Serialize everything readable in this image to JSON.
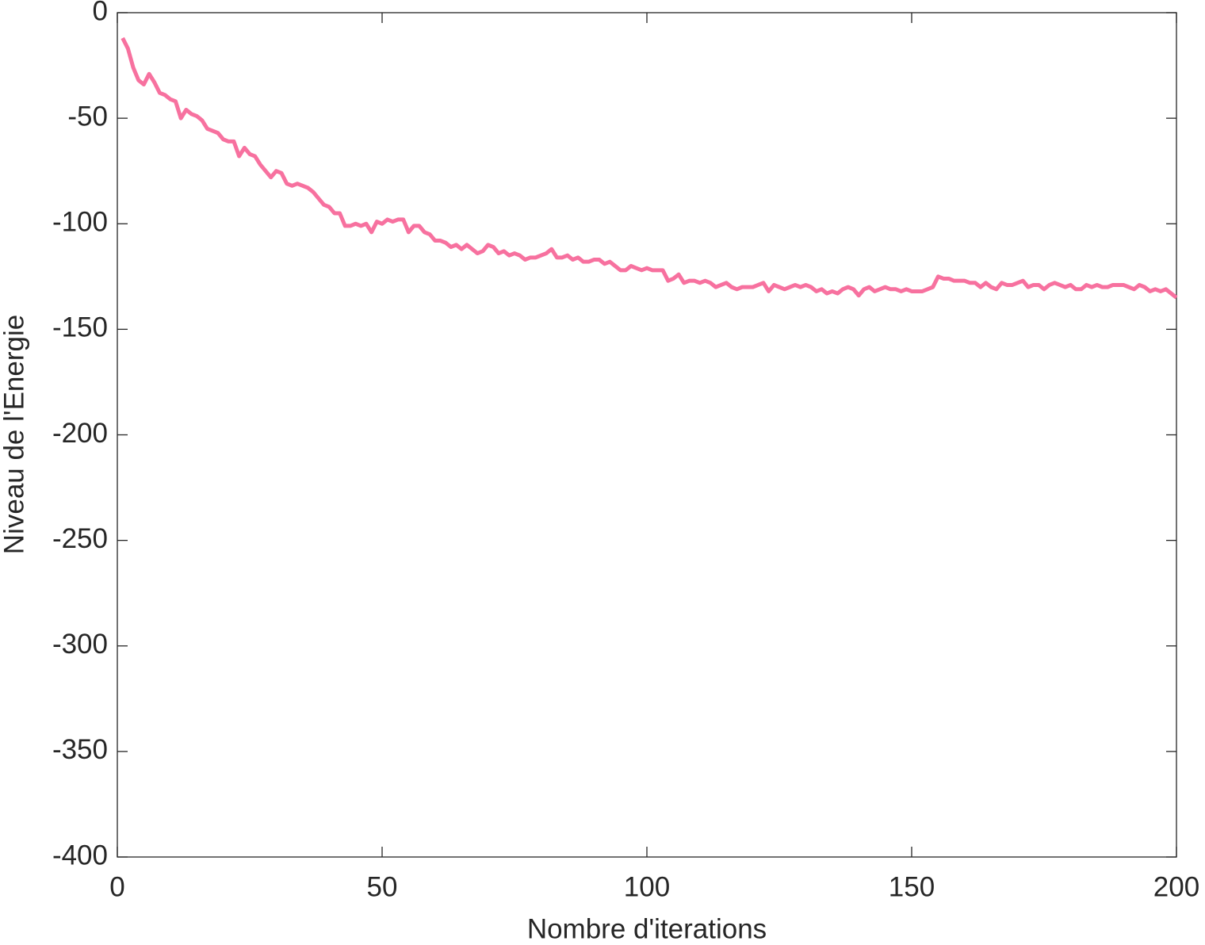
{
  "chart_data": {
    "type": "line",
    "x_label": "Nombre d'iterations",
    "y_label": "Niveau de l'Energie",
    "x": [
      1,
      2,
      3,
      4,
      5,
      6,
      7,
      8,
      9,
      10,
      11,
      12,
      13,
      14,
      15,
      16,
      17,
      18,
      19,
      20,
      21,
      22,
      23,
      24,
      25,
      26,
      27,
      28,
      29,
      30,
      31,
      32,
      33,
      34,
      35,
      36,
      37,
      38,
      39,
      40,
      41,
      42,
      43,
      44,
      45,
      46,
      47,
      48,
      49,
      50,
      51,
      52,
      53,
      54,
      55,
      56,
      57,
      58,
      59,
      60,
      61,
      62,
      63,
      64,
      65,
      66,
      67,
      68,
      69,
      70,
      71,
      72,
      73,
      74,
      75,
      76,
      77,
      78,
      79,
      80,
      81,
      82,
      83,
      84,
      85,
      86,
      87,
      88,
      89,
      90,
      91,
      92,
      93,
      94,
      95,
      96,
      97,
      98,
      99,
      100,
      101,
      102,
      103,
      104,
      105,
      106,
      107,
      108,
      109,
      110,
      111,
      112,
      113,
      114,
      115,
      116,
      117,
      118,
      119,
      120,
      121,
      122,
      123,
      124,
      125,
      126,
      127,
      128,
      129,
      130,
      131,
      132,
      133,
      134,
      135,
      136,
      137,
      138,
      139,
      140,
      141,
      142,
      143,
      144,
      145,
      146,
      147,
      148,
      149,
      150,
      151,
      152,
      153,
      154,
      155,
      156,
      157,
      158,
      159,
      160,
      161,
      162,
      163,
      164,
      165,
      166,
      167,
      168,
      169,
      170,
      171,
      172,
      173,
      174,
      175,
      176,
      177,
      178,
      179,
      180,
      181,
      182,
      183,
      184,
      185,
      186,
      187,
      188,
      189,
      190,
      191,
      192,
      193,
      194,
      195,
      196,
      197,
      198,
      199,
      200
    ],
    "series": [
      {
        "color": "#f7719f",
        "values": [
          -12,
          -17,
          -26,
          -32,
          -34,
          -29,
          -33,
          -38,
          -39,
          -41,
          -42,
          -50,
          -46,
          -48,
          -49,
          -51,
          -55,
          -56,
          -57,
          -60,
          -61,
          -61,
          -68,
          -64,
          -67,
          -68,
          -72,
          -75,
          -78,
          -75,
          -76,
          -81,
          -82,
          -81,
          -82,
          -83,
          -85,
          -88,
          -91,
          -92,
          -95,
          -95,
          -101,
          -101,
          -100,
          -101,
          -100,
          -104,
          -99,
          -100,
          -98,
          -99,
          -98,
          -98,
          -104,
          -101,
          -101,
          -104,
          -105,
          -108,
          -108,
          -109,
          -111,
          -110,
          -112,
          -110,
          -112,
          -114,
          -113,
          -110,
          -111,
          -114,
          -113,
          -115,
          -114,
          -115,
          -117,
          -116,
          -116,
          -115,
          -114,
          -112,
          -116,
          -116,
          -115,
          -117,
          -116,
          -118,
          -118,
          -117,
          -117,
          -119,
          -118,
          -120,
          -122,
          -122,
          -120,
          -121,
          -122,
          -121,
          -122,
          -122,
          -122,
          -127,
          -126,
          -124,
          -128,
          -127,
          -127,
          -128,
          -127,
          -128,
          -130,
          -129,
          -128,
          -130,
          -131,
          -130,
          -130,
          -130,
          -129,
          -128,
          -132,
          -129,
          -130,
          -131,
          -130,
          -129,
          -130,
          -129,
          -130,
          -132,
          -131,
          -133,
          -132,
          -133,
          -131,
          -130,
          -131,
          -134,
          -131,
          -130,
          -132,
          -131,
          -130,
          -131,
          -131,
          -132,
          -131,
          -132,
          -132,
          -132,
          -131,
          -130,
          -125,
          -126,
          -126,
          -127,
          -127,
          -127,
          -128,
          -128,
          -130,
          -128,
          -130,
          -131,
          -128,
          -129,
          -129,
          -128,
          -127,
          -130,
          -129,
          -129,
          -131,
          -129,
          -128,
          -129,
          -130,
          -129,
          -131,
          -131,
          -129,
          -130,
          -129,
          -130,
          -130,
          -129,
          -129,
          -129,
          -130,
          -131,
          -129,
          -130,
          -132,
          -131,
          -132,
          -131,
          -133,
          -135
        ]
      }
    ],
    "xlim": [
      0,
      200
    ],
    "xticks": [
      0,
      50,
      100,
      150,
      200
    ],
    "ylim": [
      -400,
      0
    ],
    "yticks": [
      -400,
      -350,
      -300,
      -250,
      -200,
      -150,
      -100,
      -50,
      0
    ],
    "grid": false
  }
}
